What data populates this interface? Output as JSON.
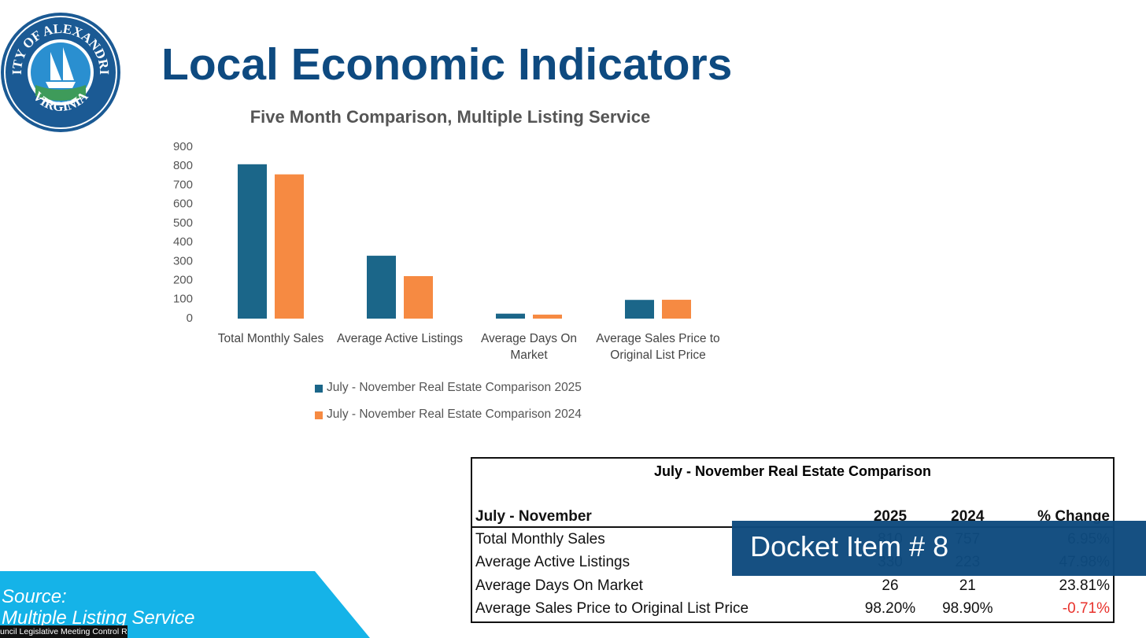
{
  "logo": {
    "top": "CITY OF ALEXANDRIA",
    "bottom": "VIRGINIA"
  },
  "header": {
    "title": "Local Economic Indicators"
  },
  "chart_data": {
    "type": "bar",
    "title": "Five Month Comparison, Multiple Listing Service",
    "categories": [
      "Total Monthly Sales",
      "Average Active Listings",
      "Average Days On Market",
      "Average Sales Price to Original List Price"
    ],
    "series": [
      {
        "name": "July - November Real Estate Comparison 2025",
        "color": "#1b6689",
        "values": [
          810,
          330,
          26,
          98.2
        ]
      },
      {
        "name": "July - November Real Estate Comparison 2024",
        "color": "#f68a42",
        "values": [
          757,
          223,
          21,
          98.9
        ]
      }
    ],
    "ylim": [
      0,
      900
    ],
    "yticks": [
      0,
      100,
      200,
      300,
      400,
      500,
      600,
      700,
      800,
      900
    ],
    "grid": false,
    "legend": "bottom"
  },
  "table": {
    "title": "July - November Real Estate Comparison",
    "header": [
      "July - November",
      "2025",
      "2024",
      "% Change"
    ],
    "rows": [
      [
        "Total Monthly Sales",
        "810",
        "757",
        "6.95%"
      ],
      [
        "Average Active Listings",
        "330",
        "223",
        "47.98%"
      ],
      [
        "Average Days On Market",
        "26",
        "21",
        "23.81%"
      ],
      [
        "Average Sales Price to Original List Price",
        "98.20%",
        "98.90%",
        "-0.71%"
      ]
    ]
  },
  "overlay": {
    "docket": "Docket Item # 8",
    "source": "Source:",
    "source_name": "Multiple Listing Service",
    "caption": "uncil Legislative Meeting Control R"
  }
}
